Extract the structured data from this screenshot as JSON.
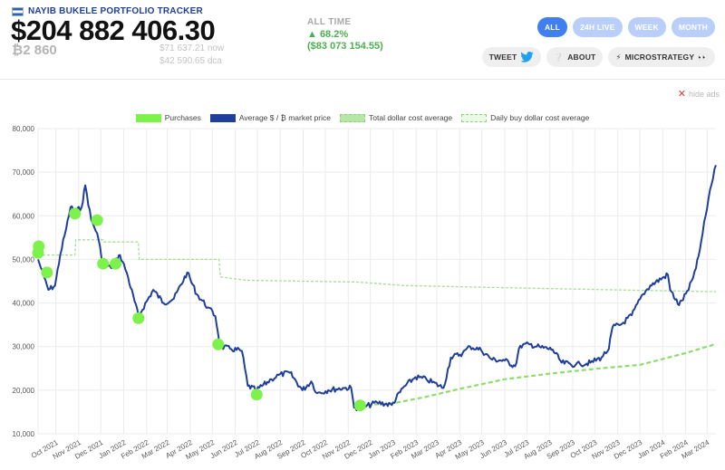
{
  "header": {
    "brand": "NAYIB BUKELE PORTFOLIO TRACKER",
    "portfolio_value": "$204 882 406.30",
    "btc_amount": "₿2 860",
    "price_now": "$71 637.21 now",
    "price_dca": "$42 590.65 dca",
    "alltime_label": "ALL TIME",
    "alltime_pct": "▲ 68.2%",
    "alltime_usd": "($83 073 154.55)"
  },
  "range_buttons": [
    "ALL",
    "24H LIVE",
    "WEEK",
    "MONTH"
  ],
  "social": {
    "tweet": "TWEET",
    "about": "ABOUT",
    "microstrategy": "MICROSTRATEGY"
  },
  "hide_ads": "hide ads",
  "colors": {
    "accent": "#3f7ff0",
    "accent_light": "#b9cef8",
    "brand": "#1e3f9c",
    "positive": "#4cb050",
    "line": "#1f3f9a",
    "purchase": "#7cf24a",
    "dca": "#9ad88a"
  },
  "chart_data": {
    "type": "line",
    "legend": [
      "Purchases",
      "Average $ / ₿ market price",
      "Total dollar cost average",
      "Daily buy dollar cost average"
    ],
    "y_ticks": [
      "80,000",
      "70,000",
      "60,000",
      "50,000",
      "40,000",
      "30,000",
      "20,000",
      "10,000"
    ],
    "ylim": [
      10000,
      80000
    ],
    "x_ticks": [
      "Oct 2021",
      "Nov 2021",
      "Dec 2021",
      "Jan 2022",
      "Feb 2022",
      "Mar 2022",
      "Apr 2022",
      "May 2022",
      "Jun 2022",
      "Jul 2022",
      "Aug 2022",
      "Sep 2022",
      "Oct 2022",
      "Nov 2022",
      "Dec 2022",
      "Jan 2023",
      "Feb 2023",
      "Mar 2023",
      "Apr 2023",
      "May 2023",
      "Jun 2023",
      "Jul 2023",
      "Aug 2023",
      "Sep 2023",
      "Oct 2023",
      "Nov 2023",
      "Dec 2023",
      "Jan 2024",
      "Feb 2024",
      "Mar 2024"
    ],
    "series": [
      {
        "name": "Average $ / ₿ market price",
        "x": [
          "2021-09-07",
          "2021-09-15",
          "2021-09-21",
          "2021-09-30",
          "2021-10-07",
          "2021-10-15",
          "2021-10-21",
          "2021-10-28",
          "2021-11-05",
          "2021-11-10",
          "2021-11-18",
          "2021-11-26",
          "2021-12-04",
          "2021-12-15",
          "2021-12-27",
          "2022-01-05",
          "2022-01-21",
          "2022-02-10",
          "2022-02-24",
          "2022-03-10",
          "2022-03-28",
          "2022-04-10",
          "2022-04-25",
          "2022-05-05",
          "2022-05-12",
          "2022-05-25",
          "2022-06-10",
          "2022-06-18",
          "2022-06-30",
          "2022-07-20",
          "2022-07-30",
          "2022-08-14",
          "2022-08-31",
          "2022-09-12",
          "2022-09-20",
          "2022-10-05",
          "2022-10-25",
          "2022-11-05",
          "2022-11-09",
          "2022-11-21",
          "2022-12-10",
          "2022-12-30",
          "2023-01-14",
          "2023-01-31",
          "2023-02-15",
          "2023-03-10",
          "2023-03-20",
          "2023-04-05",
          "2023-04-15",
          "2023-04-30",
          "2023-05-15",
          "2023-06-01",
          "2023-06-15",
          "2023-06-22",
          "2023-07-05",
          "2023-07-20",
          "2023-08-05",
          "2023-08-17",
          "2023-09-05",
          "2023-09-11",
          "2023-09-25",
          "2023-10-10",
          "2023-10-20",
          "2023-10-25",
          "2023-11-05",
          "2023-11-20",
          "2023-12-05",
          "2023-12-15",
          "2024-01-08",
          "2024-01-11",
          "2024-01-23",
          "2024-02-05",
          "2024-02-15",
          "2024-02-20",
          "2024-02-28",
          "2024-03-05",
          "2024-03-13"
        ],
        "y": [
          50000,
          46000,
          43000,
          44000,
          51000,
          57000,
          62000,
          61000,
          62000,
          67000,
          59000,
          56000,
          49000,
          48000,
          51000,
          47000,
          37000,
          43000,
          40000,
          41000,
          47000,
          42000,
          39000,
          37000,
          30000,
          29500,
          29000,
          21000,
          20000,
          22500,
          23500,
          24000,
          20000,
          22000,
          19300,
          20000,
          20500,
          20500,
          16000,
          16000,
          17200,
          16600,
          20500,
          23000,
          22500,
          20500,
          27500,
          28500,
          30000,
          29200,
          27000,
          26800,
          25500,
          30200,
          30500,
          29800,
          29300,
          26300,
          25800,
          26000,
          26300,
          27500,
          29500,
          34500,
          35000,
          37200,
          42000,
          44000,
          46500,
          43000,
          39500,
          43000,
          48000,
          52000,
          60000,
          66000,
          71600
        ]
      },
      {
        "name": "Daily buy dollar cost average",
        "x": [
          "2021-09-07",
          "2021-10-27",
          "2021-10-28",
          "2021-12-04",
          "2021-12-05",
          "2022-01-21",
          "2022-01-22",
          "2022-05-10",
          "2022-05-12",
          "2022-06-15",
          "2022-11-15",
          "2023-01-15",
          "2023-06-01",
          "2023-12-01",
          "2024-03-13"
        ],
        "y": [
          51000,
          51000,
          54500,
          54500,
          54000,
          54000,
          50000,
          50000,
          46000,
          45200,
          44800,
          44000,
          43500,
          42900,
          42600
        ]
      },
      {
        "name": "Total dollar cost average",
        "x": [
          "2022-11-17",
          "2023-01-01",
          "2023-02-15",
          "2023-04-01",
          "2023-06-01",
          "2023-08-01",
          "2023-10-01",
          "2023-12-01",
          "2024-02-01",
          "2024-03-13"
        ],
        "y": [
          16500,
          17000,
          18500,
          20300,
          22500,
          23800,
          24900,
          25800,
          28500,
          30600
        ]
      },
      {
        "name": "Purchases",
        "x": [
          "2021-09-07",
          "2021-09-08",
          "2021-09-19",
          "2021-10-27",
          "2021-11-26",
          "2021-12-04",
          "2021-12-21",
          "2022-01-21",
          "2022-05-09",
          "2022-06-30",
          "2022-11-17"
        ],
        "y": [
          51500,
          53000,
          47000,
          60500,
          59000,
          49000,
          49000,
          36500,
          30500,
          19000,
          16500
        ]
      }
    ],
    "grid": true,
    "legend_position": "top-center"
  }
}
